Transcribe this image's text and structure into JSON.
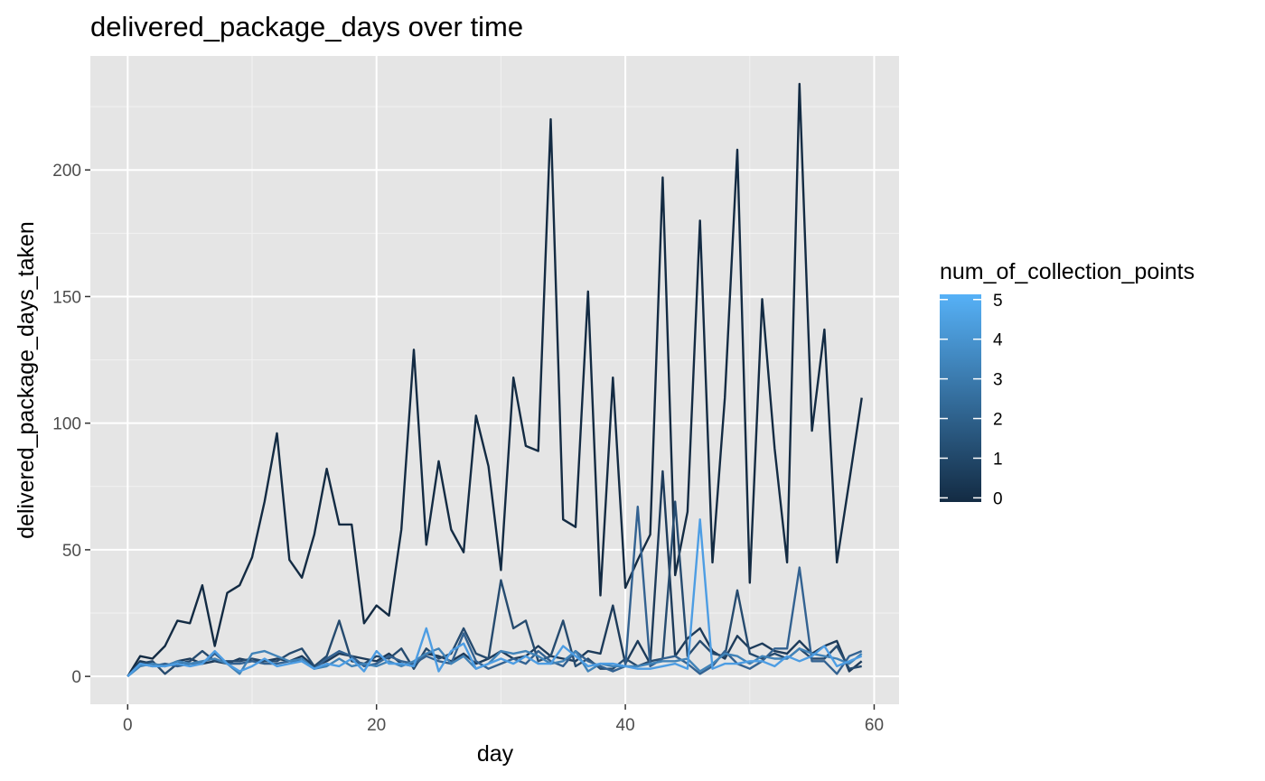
{
  "chart_data": {
    "type": "line",
    "title": "delivered_package_days over time",
    "xlabel": "day",
    "ylabel": "delivered_package_days_taken",
    "xlim": [
      -3,
      62
    ],
    "ylim": [
      -11,
      245
    ],
    "xticks": [
      0,
      20,
      40,
      60
    ],
    "yticks": [
      0,
      50,
      100,
      150,
      200
    ],
    "grid": true,
    "legend": {
      "title": "num_of_collection_points",
      "placement": "right",
      "type": "colorbar",
      "range": [
        0,
        5
      ],
      "ticks": [
        0,
        1,
        2,
        3,
        4,
        5
      ],
      "low_color": "#132b43",
      "high_color": "#56b1f7"
    },
    "series": [
      {
        "level": 0,
        "color": "#132b43",
        "values": [
          0,
          8,
          7,
          12,
          22,
          21,
          36,
          12,
          33,
          36,
          47,
          69,
          96,
          46,
          39,
          56,
          82,
          60,
          60,
          21,
          28,
          24,
          58,
          129,
          52,
          85,
          58,
          49,
          103,
          83,
          42,
          118,
          91,
          89,
          220,
          62,
          59,
          152,
          32,
          118,
          35,
          46,
          56,
          197,
          40,
          65,
          180,
          45,
          110,
          208,
          37,
          149,
          90,
          45,
          234,
          97,
          137,
          45,
          77,
          110
        ]
      },
      {
        "level": 1,
        "color": "#1d3b5a",
        "values": [
          0,
          6,
          5,
          4,
          6,
          7,
          5,
          6,
          5,
          7,
          6,
          6,
          7,
          6,
          8,
          4,
          6,
          9,
          8,
          7,
          6,
          9,
          5,
          4,
          9,
          8,
          6,
          9,
          5,
          7,
          10,
          7,
          8,
          12,
          8,
          7,
          6,
          10,
          9,
          28,
          5,
          14,
          5,
          81,
          8,
          15,
          19,
          10,
          7,
          16,
          11,
          13,
          10,
          9,
          14,
          9,
          12,
          14,
          2,
          6
        ]
      },
      {
        "level": 2,
        "color": "#264b6f",
        "values": [
          0,
          5,
          6,
          1,
          5,
          6,
          10,
          6,
          6,
          6,
          7,
          6,
          6,
          9,
          11,
          4,
          8,
          22,
          6,
          5,
          8,
          7,
          11,
          3,
          11,
          7,
          9,
          19,
          9,
          7,
          38,
          19,
          22,
          6,
          8,
          22,
          4,
          7,
          3,
          3,
          7,
          4,
          6,
          7,
          69,
          8,
          14,
          9,
          8,
          34,
          9,
          7,
          9,
          7,
          11,
          7,
          7,
          12,
          3,
          4
        ]
      },
      {
        "level": 3,
        "color": "#336291",
        "values": [
          0,
          5,
          4,
          5,
          4,
          5,
          5,
          9,
          5,
          5,
          6,
          5,
          5,
          6,
          6,
          3,
          7,
          10,
          8,
          4,
          5,
          8,
          6,
          5,
          8,
          6,
          5,
          17,
          6,
          3,
          5,
          7,
          5,
          10,
          6,
          4,
          10,
          6,
          4,
          2,
          4,
          67,
          4,
          7,
          8,
          5,
          1,
          4,
          10,
          5,
          3,
          6,
          11,
          11,
          43,
          6,
          6,
          1,
          8,
          10
        ]
      },
      {
        "level": 4,
        "color": "#4183b8",
        "values": [
          0,
          4,
          5,
          4,
          6,
          5,
          6,
          7,
          5,
          1,
          9,
          10,
          8,
          6,
          7,
          3,
          4,
          7,
          4,
          5,
          4,
          6,
          4,
          6,
          9,
          11,
          5,
          8,
          3,
          5,
          10,
          9,
          10,
          8,
          5,
          6,
          10,
          2,
          5,
          4,
          4,
          4,
          5,
          6,
          6,
          7,
          2,
          5,
          9,
          8,
          5,
          8,
          7,
          7,
          11,
          9,
          8,
          7,
          5,
          9
        ]
      },
      {
        "level": 5,
        "color": "#4d9de3",
        "values": [
          0,
          5,
          4,
          4,
          5,
          4,
          5,
          10,
          5,
          2,
          4,
          7,
          4,
          5,
          6,
          3,
          5,
          4,
          7,
          2,
          10,
          5,
          5,
          4,
          19,
          2,
          10,
          13,
          3,
          5,
          7,
          5,
          8,
          5,
          5,
          12,
          8,
          4,
          5,
          5,
          4,
          3,
          3,
          4,
          5,
          3,
          62,
          3,
          5,
          5,
          6,
          6,
          4,
          8,
          6,
          8,
          12,
          4,
          6,
          8
        ]
      }
    ]
  }
}
